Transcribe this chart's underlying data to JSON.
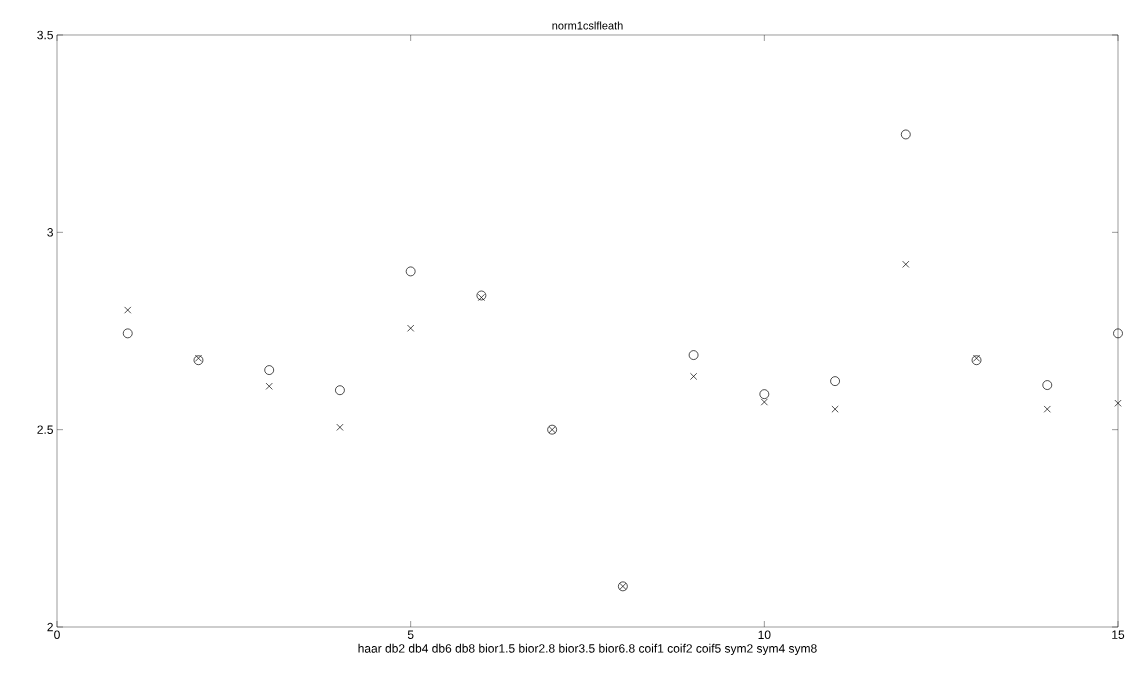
{
  "chart_data": {
    "type": "scatter",
    "title": "norm1cslfleath",
    "xlabel": "haar db2 db4 db6 db8 bior1.5 bior2.8 bior3.5 bior6.8 coif1 coif2 coif5 sym2 sym4 sym8",
    "x": [
      1,
      2,
      3,
      4,
      5,
      6,
      7,
      8,
      9,
      10,
      11,
      12,
      13,
      14,
      15
    ],
    "series": [
      {
        "color": "#000000",
        "marker": "circle",
        "values": [
          2.744,
          2.676,
          2.651,
          2.6,
          2.901,
          2.84,
          2.5,
          2.103,
          2.689,
          2.59,
          2.623,
          3.248,
          2.676,
          2.613,
          2.744
        ]
      },
      {
        "color": "#000000",
        "marker": "cross",
        "values": [
          2.803,
          2.681,
          2.61,
          2.506,
          2.757,
          2.835,
          2.5,
          2.103,
          2.635,
          2.57,
          2.552,
          2.919,
          2.681,
          2.552,
          2.567
        ]
      }
    ],
    "xlim": [
      0,
      15
    ],
    "ylim": [
      2,
      3.5
    ],
    "xticks": [
      0,
      5,
      10,
      15
    ],
    "yticks": [
      2,
      2.5,
      3,
      3.5
    ],
    "grid": false
  }
}
